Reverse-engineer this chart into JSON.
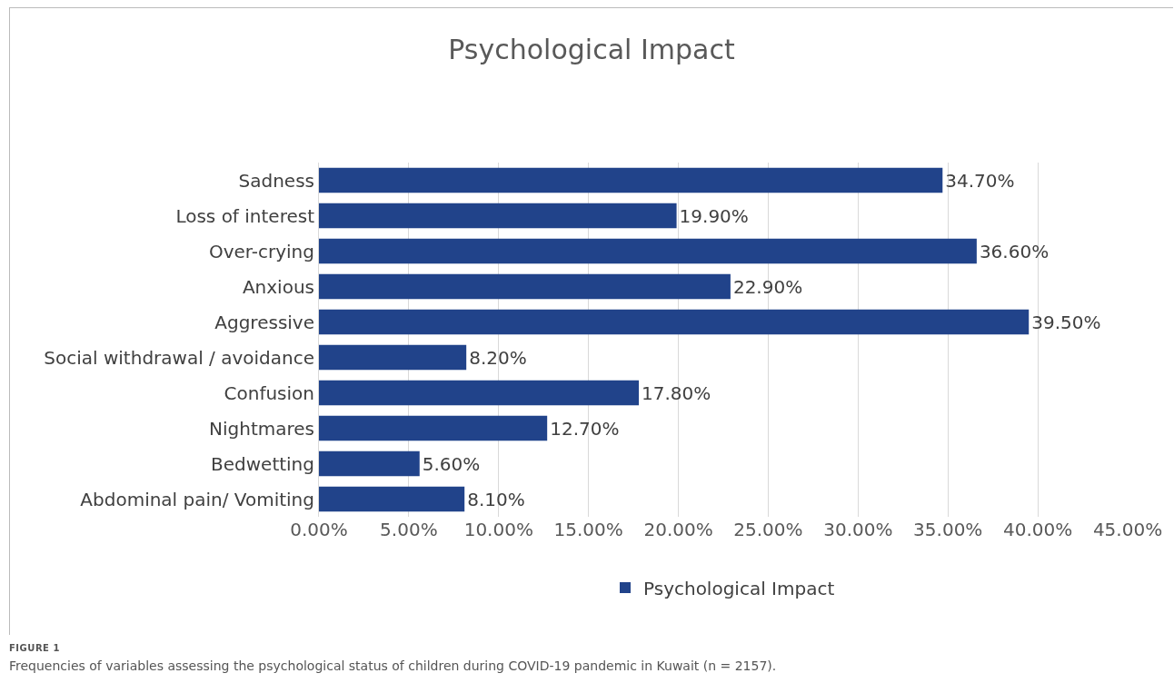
{
  "chart_data": {
    "type": "bar",
    "orientation": "horizontal",
    "title": "Psychological Impact",
    "categories": [
      "Sadness",
      "Loss of interest",
      "Over-crying",
      "Anxious",
      "Aggressive",
      "Social withdrawal / avoidance",
      "Confusion",
      "Nightmares",
      "Bedwetting",
      "Abdominal pain/ Vomiting"
    ],
    "series": [
      {
        "name": "Psychological Impact",
        "color": "#21438a",
        "values": [
          34.7,
          19.9,
          36.6,
          22.9,
          39.5,
          8.2,
          17.8,
          12.7,
          5.6,
          8.1
        ],
        "value_labels": [
          "34.70%",
          "19.90%",
          "36.60%",
          "22.90%",
          "39.50%",
          "8.20%",
          "17.80%",
          "12.70%",
          "5.60%",
          "8.10%"
        ]
      }
    ],
    "xlim": [
      0,
      45
    ],
    "xticks": [
      {
        "value": 0,
        "label": "0.00%"
      },
      {
        "value": 5,
        "label": "5.00%"
      },
      {
        "value": 10,
        "label": "10.00%"
      },
      {
        "value": 15,
        "label": "15.00%"
      },
      {
        "value": 20,
        "label": "20.00%"
      },
      {
        "value": 25,
        "label": "25.00%"
      },
      {
        "value": 30,
        "label": "30.00%"
      },
      {
        "value": 35,
        "label": "35.00%"
      },
      {
        "value": 40,
        "label": "40.00%"
      },
      {
        "value": 45,
        "label": "45.00%"
      }
    ],
    "grid": "x",
    "legend": "bottom",
    "annotations": [
      "FIGURE 1",
      "Frequencies of variables assessing the psychological status of children during COVID-19 pandemic in Kuwait (n = 2157)."
    ]
  }
}
